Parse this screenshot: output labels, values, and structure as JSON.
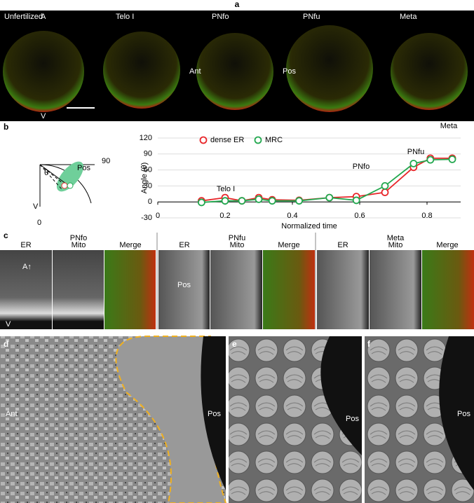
{
  "panels": {
    "a": {
      "letter": "a",
      "stages": [
        "Unfertilized",
        "Telo I",
        "PNfo",
        "PNfu",
        "Meta"
      ],
      "animal": "A",
      "vegetal": "V",
      "ant": "Ant",
      "pos": "Pos"
    },
    "b": {
      "letter": "b",
      "diagram": {
        "deg90": "90",
        "pos": "Pos",
        "theta": "θ",
        "vegetal": "V",
        "deg0": "0"
      }
    },
    "c": {
      "letter": "c",
      "groups": [
        "PNfo",
        "PNfu",
        "Meta"
      ],
      "channels": [
        "ER",
        "Mito",
        "Merge"
      ],
      "animal": "A↑",
      "vegetal": "V",
      "pos": "Pos"
    },
    "d": {
      "letter": "d",
      "ant": "Ant",
      "pos": "Pos"
    },
    "e": {
      "letter": "e",
      "pos": "Pos"
    },
    "f": {
      "letter": "f",
      "pos": "Pos"
    }
  },
  "chart_data": {
    "type": "line",
    "xlabel": "Normalized time",
    "ylabel": "Angle (θ)",
    "x": [
      0.13,
      0.2,
      0.25,
      0.3,
      0.34,
      0.42,
      0.51,
      0.59,
      0.675,
      0.76,
      0.81,
      0.875
    ],
    "series": [
      {
        "name": "dense ER",
        "color": "#e8262a",
        "values": [
          2,
          8,
          2,
          8,
          4,
          3,
          8,
          10,
          18,
          65,
          82,
          82
        ]
      },
      {
        "name": "MRC",
        "color": "#23a84f",
        "values": [
          -1,
          2,
          2,
          5,
          2,
          2,
          8,
          3,
          30,
          72,
          79,
          80
        ]
      }
    ],
    "annotations": [
      "Telo I",
      "PNfo",
      "PNfu",
      "Meta"
    ],
    "xlim": [
      0,
      0.9
    ],
    "xticks": [
      0,
      0.2,
      0.4,
      0.6,
      0.8
    ],
    "ylim": [
      -30,
      120
    ],
    "yticks": [
      -30,
      0,
      30,
      60,
      90,
      120
    ],
    "grid": true
  }
}
